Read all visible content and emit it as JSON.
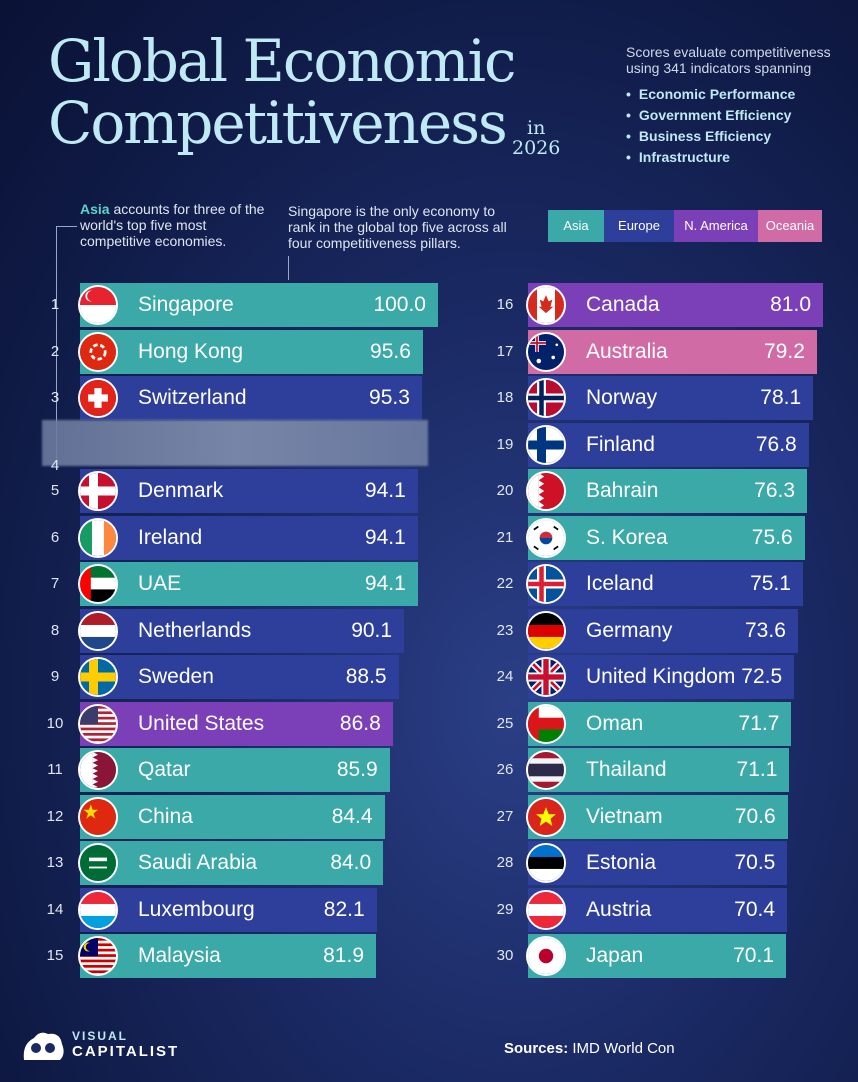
{
  "header": {
    "title_line1": "Global Economic",
    "title_line2": "Competitiveness",
    "in_word": "in",
    "year": "2026",
    "scores_text": "Scores evaluate competitiveness using 341 indicators spanning",
    "pillars": [
      "Economic Performance",
      "Government Efficiency",
      "Business Efficiency",
      "Infrastructure"
    ]
  },
  "notes": {
    "asia_word": "Asia",
    "asia_rest": " accounts for three of the world's top five most competitive economies.",
    "singapore_note": "Singapore is the only economy to rank in the global top five across all four competitiveness pillars."
  },
  "legend": [
    {
      "label": "Asia",
      "color": "#3aa9a7"
    },
    {
      "label": "Europe",
      "color": "#2d3f9a"
    },
    {
      "label": "N. America",
      "color": "#7b3fb8"
    },
    {
      "label": "Oceania",
      "color": "#d06ba6"
    }
  ],
  "chart_data": {
    "type": "bar",
    "title": "Global Economic Competitiveness in 2026",
    "xlim": [
      0,
      100
    ],
    "bars": [
      {
        "rank": "1",
        "name": "Singapore",
        "value": 100.0,
        "label": "100.0",
        "region": "Asia",
        "flag": "singapore"
      },
      {
        "rank": "2",
        "name": "Hong Kong",
        "value": 95.6,
        "label": "95.6",
        "region": "Asia",
        "flag": "hongkong"
      },
      {
        "rank": "3",
        "name": "Switzerland",
        "value": 95.3,
        "label": "95.3",
        "region": "Europe",
        "flag": "switzerland"
      },
      {
        "rank": "5",
        "name": "Denmark",
        "value": 94.1,
        "label": "94.1",
        "region": "Europe",
        "flag": "denmark"
      },
      {
        "rank": "6",
        "name": "Ireland",
        "value": 94.1,
        "label": "94.1",
        "region": "Europe",
        "flag": "ireland"
      },
      {
        "rank": "7",
        "name": "UAE",
        "value": 94.1,
        "label": "94.1",
        "region": "Asia",
        "flag": "uae"
      },
      {
        "rank": "8",
        "name": "Netherlands",
        "value": 90.1,
        "label": "90.1",
        "region": "Europe",
        "flag": "netherlands"
      },
      {
        "rank": "9",
        "name": "Sweden",
        "value": 88.5,
        "label": "88.5",
        "region": "Europe",
        "flag": "sweden"
      },
      {
        "rank": "10",
        "name": "United States",
        "value": 86.8,
        "label": "86.8",
        "region": "N. America",
        "flag": "usa"
      },
      {
        "rank": "11",
        "name": "Qatar",
        "value": 85.9,
        "label": "85.9",
        "region": "Asia",
        "flag": "qatar"
      },
      {
        "rank": "12",
        "name": "China",
        "value": 84.4,
        "label": "84.4",
        "region": "Asia",
        "flag": "china"
      },
      {
        "rank": "13",
        "name": "Saudi Arabia",
        "value": 84.0,
        "label": "84.0",
        "region": "Asia",
        "flag": "saudi"
      },
      {
        "rank": "14",
        "name": "Luxembourg",
        "value": 82.1,
        "label": "82.1",
        "region": "Europe",
        "flag": "luxembourg"
      },
      {
        "rank": "15",
        "name": "Malaysia",
        "value": 81.9,
        "label": "81.9",
        "region": "Asia",
        "flag": "malaysia"
      },
      {
        "rank": "16",
        "name": "Canada",
        "value": 81.0,
        "label": "81.0",
        "region": "N. America",
        "flag": "canada"
      },
      {
        "rank": "17",
        "name": "Australia",
        "value": 79.2,
        "label": "79.2",
        "region": "Oceania",
        "flag": "australia"
      },
      {
        "rank": "18",
        "name": "Norway",
        "value": 78.1,
        "label": "78.1",
        "region": "Europe",
        "flag": "norway"
      },
      {
        "rank": "19",
        "name": "Finland",
        "value": 76.8,
        "label": "76.8",
        "region": "Europe",
        "flag": "finland"
      },
      {
        "rank": "20",
        "name": "Bahrain",
        "value": 76.3,
        "label": "76.3",
        "region": "Asia",
        "flag": "bahrain"
      },
      {
        "rank": "21",
        "name": "S. Korea",
        "value": 75.6,
        "label": "75.6",
        "region": "Asia",
        "flag": "korea"
      },
      {
        "rank": "22",
        "name": "Iceland",
        "value": 75.1,
        "label": "75.1",
        "region": "Europe",
        "flag": "iceland"
      },
      {
        "rank": "23",
        "name": "Germany",
        "value": 73.6,
        "label": "73.6",
        "region": "Europe",
        "flag": "germany"
      },
      {
        "rank": "24",
        "name": "United Kingdom",
        "value": 72.5,
        "label": "72.5",
        "region": "Europe",
        "flag": "uk"
      },
      {
        "rank": "25",
        "name": "Oman",
        "value": 71.7,
        "label": "71.7",
        "region": "Asia",
        "flag": "oman"
      },
      {
        "rank": "26",
        "name": "Thailand",
        "value": 71.1,
        "label": "71.1",
        "region": "Asia",
        "flag": "thailand"
      },
      {
        "rank": "27",
        "name": "Vietnam",
        "value": 70.6,
        "label": "70.6",
        "region": "Asia",
        "flag": "vietnam"
      },
      {
        "rank": "28",
        "name": "Estonia",
        "value": 70.5,
        "label": "70.5",
        "region": "Europe",
        "flag": "estonia"
      },
      {
        "rank": "29",
        "name": "Austria",
        "value": 70.4,
        "label": "70.4",
        "region": "Europe",
        "flag": "austria"
      },
      {
        "rank": "30",
        "name": "Japan",
        "value": 70.1,
        "label": "70.1",
        "region": "Asia",
        "flag": "japan"
      }
    ],
    "rank4_row_label": "4"
  },
  "footer": {
    "brand_top": "VISUAL",
    "brand_bottom": "CAPITALIST",
    "sources_label": "Sources:",
    "sources_text": " IMD World Con"
  }
}
